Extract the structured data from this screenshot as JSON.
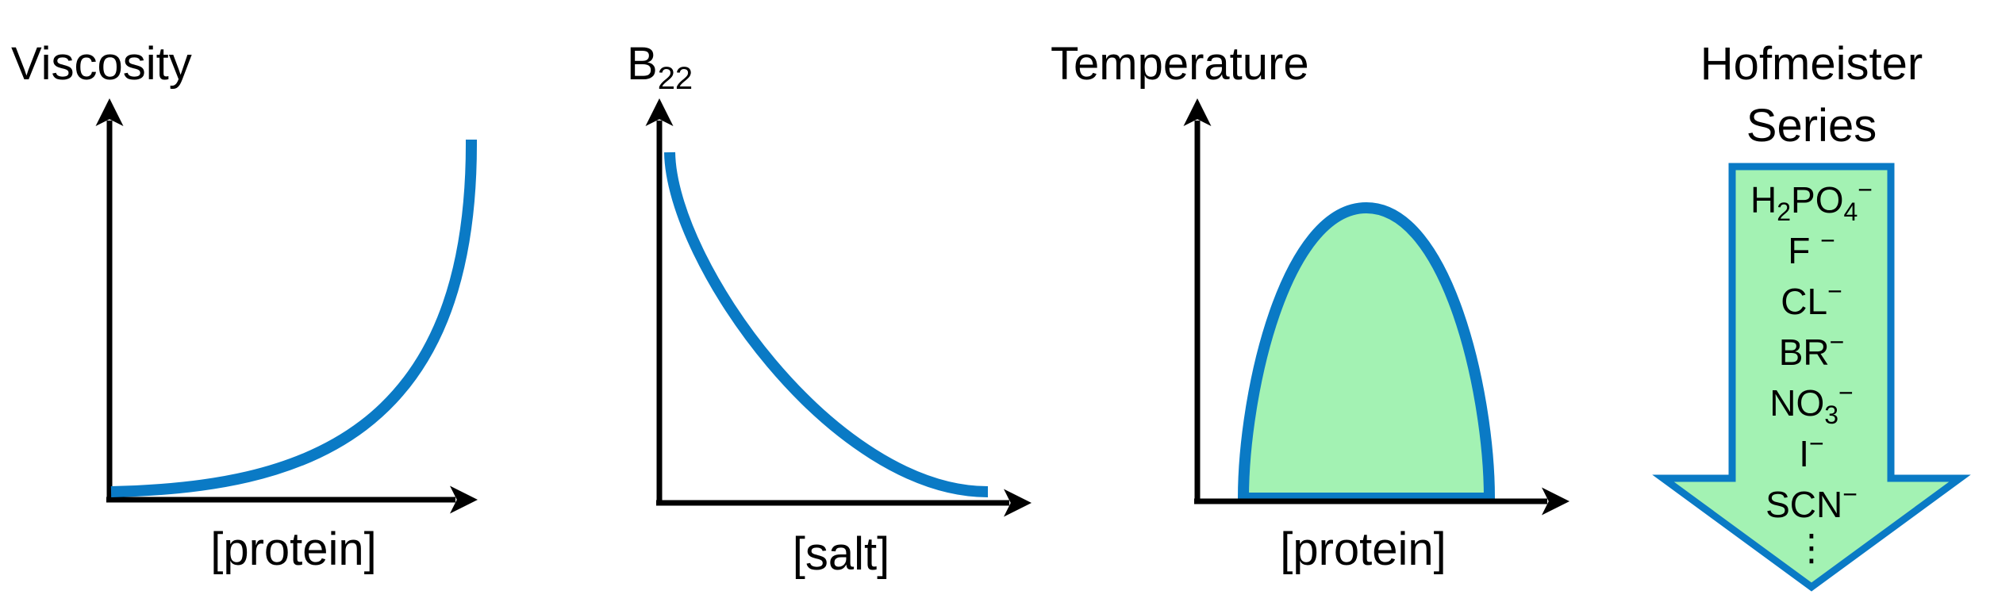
{
  "panels": [
    {
      "id": "viscosity",
      "ylabel": "Viscosity",
      "xlabel": "[protein]",
      "curve": "increasing-exponential",
      "colors": {
        "curve": "#0a7ac5",
        "axis": "#000000"
      }
    },
    {
      "id": "b22",
      "ylabel_main": "B",
      "ylabel_sub": "22",
      "xlabel": "[salt]",
      "curve": "decreasing-exponential",
      "colors": {
        "curve": "#0a7ac5",
        "axis": "#000000"
      }
    },
    {
      "id": "temperature",
      "ylabel": "Temperature",
      "xlabel": "[protein]",
      "curve": "phase-boundary-dome",
      "colors": {
        "curve": "#0a7ac5",
        "fill": "#a3f2b3",
        "axis": "#000000"
      }
    }
  ],
  "hofmeister": {
    "title_line1": "Hofmeister",
    "title_line2": "Series",
    "ions": [
      {
        "main": "H",
        "sub": "2",
        "main2": "PO",
        "sub2": "4",
        "sup": "−"
      },
      {
        "main": "F ",
        "sup": "−"
      },
      {
        "main": "CL",
        "sup": "−"
      },
      {
        "main": "BR",
        "sup": "−"
      },
      {
        "main": "NO",
        "sub": "3",
        "sup": "−"
      },
      {
        "main": "I",
        "sup": "−"
      },
      {
        "main": "SCN",
        "sup": "−"
      }
    ],
    "ellipsis": "⋮",
    "colors": {
      "fill": "#a3f2b3",
      "stroke": "#0a7ac5"
    }
  }
}
